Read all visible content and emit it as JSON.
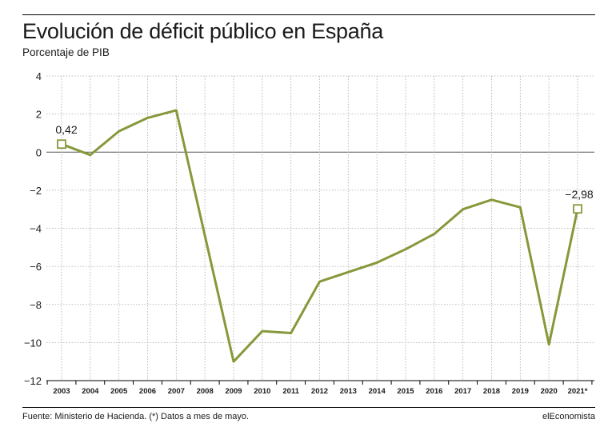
{
  "header": {
    "title": "Evolución de déficit público en España",
    "subtitle": "Porcentaje de PIB"
  },
  "footer": {
    "source": "Fuente: Ministerio de Hacienda. (*) Datos a mes de mayo.",
    "brand": "elEconomista"
  },
  "colors": {
    "line": "#86993a",
    "grid": "#aaaaaa",
    "zero": "#555555"
  },
  "chart_data": {
    "type": "line",
    "title": "Evolución de déficit público en España",
    "ylabel": "Porcentaje de PIB",
    "xlabel": "",
    "ylim": [
      -12,
      4
    ],
    "yticks": [
      4,
      2,
      0,
      -2,
      -4,
      -6,
      -8,
      -10,
      -12
    ],
    "ytick_labels": [
      "4",
      "2",
      "0",
      "−2",
      "−4",
      "−6",
      "−8",
      "−10",
      "−12"
    ],
    "grid": true,
    "categories": [
      "2003",
      "2004",
      "2005",
      "2006",
      "2007",
      "2008",
      "2009",
      "2010",
      "2011",
      "2012",
      "2013",
      "2014",
      "2015",
      "2016",
      "2017",
      "2018",
      "2019",
      "2020",
      "2021*"
    ],
    "values": [
      0.42,
      -0.15,
      1.1,
      1.8,
      2.2,
      -4.4,
      -11.0,
      -9.4,
      -9.5,
      -6.8,
      -6.3,
      -5.8,
      -5.1,
      -4.3,
      -3.0,
      -2.5,
      -2.9,
      -10.1,
      -2.98
    ],
    "annotations": [
      {
        "category": "2003",
        "value": 0.42,
        "label": "0,42"
      },
      {
        "category": "2021*",
        "value": -2.98,
        "label": "−2,98"
      }
    ]
  }
}
